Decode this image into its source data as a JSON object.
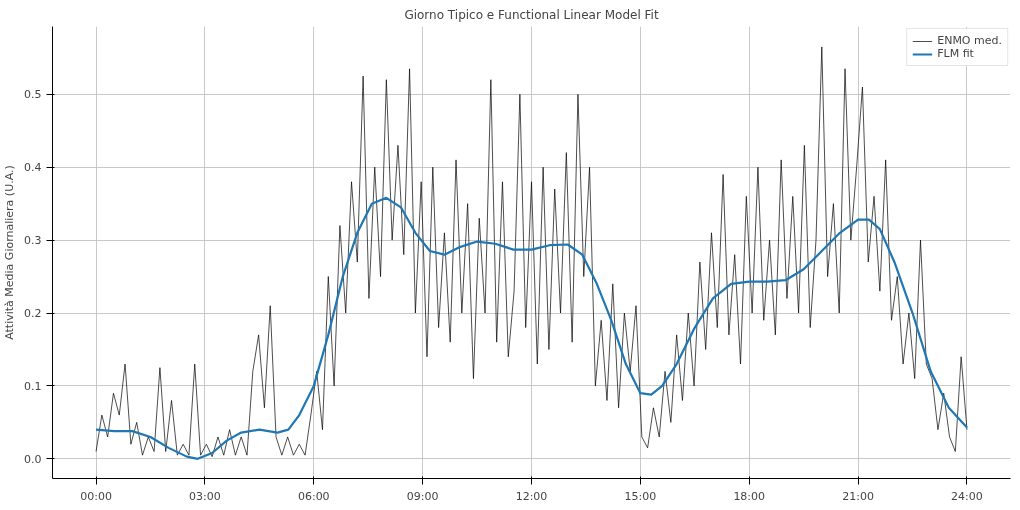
{
  "chart_data": {
    "type": "line",
    "title": "Giorno Tipico e Functional Linear Model Fit",
    "ylabel": "Attività Media Giornaliera (U.A.)",
    "xlim": [
      -1.2,
      25.2
    ],
    "ylim": [
      -0.027,
      0.593
    ],
    "xticks": [
      {
        "value": 0,
        "label": "00:00"
      },
      {
        "value": 3,
        "label": "03:00"
      },
      {
        "value": 6,
        "label": "06:00"
      },
      {
        "value": 9,
        "label": "09:00"
      },
      {
        "value": 12,
        "label": "12:00"
      },
      {
        "value": 15,
        "label": "15:00"
      },
      {
        "value": 18,
        "label": "18:00"
      },
      {
        "value": 21,
        "label": "21:00"
      },
      {
        "value": 24,
        "label": "24:00"
      }
    ],
    "yticks": [
      {
        "value": 0,
        "label": "0.0"
      },
      {
        "value": 0.1,
        "label": "0.1"
      },
      {
        "value": 0.2,
        "label": "0.2"
      },
      {
        "value": 0.3,
        "label": "0.3"
      },
      {
        "value": 0.4,
        "label": "0.4"
      },
      {
        "value": 0.5,
        "label": "0.5"
      }
    ],
    "grid": true,
    "legend": "top right",
    "marker": "none",
    "line_style": "solid",
    "series": [
      {
        "name": "ENMO med.",
        "color": "#000000",
        "x": [
          0,
          0.16,
          0.32,
          0.48,
          0.64,
          0.8,
          0.96,
          1.12,
          1.28,
          1.44,
          1.6,
          1.76,
          1.92,
          2.08,
          2.24,
          2.4,
          2.56,
          2.72,
          2.88,
          3.04,
          3.2,
          3.36,
          3.52,
          3.68,
          3.84,
          4.0,
          4.16,
          4.32,
          4.48,
          4.64,
          4.8,
          4.96,
          5.12,
          5.28,
          5.44,
          5.6,
          5.76,
          5.92,
          6.08,
          6.24,
          6.4,
          6.56,
          6.72,
          6.88,
          7.04,
          7.2,
          7.36,
          7.52,
          7.68,
          7.84,
          8.0,
          8.16,
          8.32,
          8.48,
          8.64,
          8.8,
          8.96,
          9.12,
          9.28,
          9.44,
          9.6,
          9.76,
          9.92,
          10.08,
          10.24,
          10.4,
          10.56,
          10.72,
          10.88,
          11.04,
          11.2,
          11.36,
          11.52,
          11.68,
          11.84,
          12.0,
          12.16,
          12.32,
          12.48,
          12.64,
          12.8,
          12.96,
          13.12,
          13.28,
          13.44,
          13.6,
          13.76,
          13.92,
          14.08,
          14.24,
          14.4,
          14.56,
          14.72,
          14.88,
          15.04,
          15.2,
          15.36,
          15.52,
          15.68,
          15.84,
          16.0,
          16.16,
          16.32,
          16.48,
          16.64,
          16.8,
          16.96,
          17.12,
          17.28,
          17.44,
          17.6,
          17.76,
          17.92,
          18.08,
          18.24,
          18.4,
          18.56,
          18.72,
          18.88,
          19.04,
          19.2,
          19.36,
          19.52,
          19.68,
          19.84,
          20.0,
          20.16,
          20.32,
          20.48,
          20.64,
          20.8,
          20.96,
          21.12,
          21.28,
          21.44,
          21.6,
          21.76,
          21.92,
          22.08,
          22.24,
          22.4,
          22.56,
          22.72,
          22.88,
          23.04,
          23.2,
          23.36,
          23.52,
          23.68,
          23.84,
          24.0
        ],
        "values": [
          0.01,
          0.06,
          0.03,
          0.09,
          0.06,
          0.13,
          0.02,
          0.05,
          0.005,
          0.03,
          0.01,
          0.125,
          0.01,
          0.08,
          0.005,
          0.02,
          0.005,
          0.13,
          0.005,
          0.02,
          0.003,
          0.03,
          0.005,
          0.04,
          0.005,
          0.03,
          0.005,
          0.12,
          0.17,
          0.07,
          0.21,
          0.03,
          0.005,
          0.03,
          0.005,
          0.02,
          0.005,
          0.06,
          0.12,
          0.04,
          0.25,
          0.1,
          0.32,
          0.2,
          0.38,
          0.27,
          0.525,
          0.22,
          0.4,
          0.25,
          0.52,
          0.3,
          0.43,
          0.28,
          0.535,
          0.2,
          0.38,
          0.14,
          0.4,
          0.18,
          0.31,
          0.16,
          0.41,
          0.2,
          0.35,
          0.11,
          0.33,
          0.2,
          0.52,
          0.16,
          0.38,
          0.14,
          0.23,
          0.5,
          0.18,
          0.38,
          0.13,
          0.4,
          0.15,
          0.37,
          0.2,
          0.42,
          0.16,
          0.5,
          0.25,
          0.4,
          0.1,
          0.19,
          0.08,
          0.24,
          0.07,
          0.2,
          0.12,
          0.21,
          0.03,
          0.015,
          0.07,
          0.03,
          0.12,
          0.05,
          0.17,
          0.08,
          0.2,
          0.1,
          0.27,
          0.15,
          0.31,
          0.18,
          0.39,
          0.17,
          0.28,
          0.13,
          0.36,
          0.2,
          0.4,
          0.19,
          0.3,
          0.17,
          0.41,
          0.22,
          0.36,
          0.2,
          0.43,
          0.18,
          0.3,
          0.565,
          0.25,
          0.35,
          0.2,
          0.535,
          0.3,
          0.4,
          0.51,
          0.27,
          0.36,
          0.23,
          0.41,
          0.19,
          0.25,
          0.13,
          0.2,
          0.11,
          0.3,
          0.13,
          0.11,
          0.04,
          0.09,
          0.03,
          0.01,
          0.14,
          0.04
        ]
      },
      {
        "name": "FLM fit",
        "color": "#1f77b4",
        "x": [
          0,
          0.5,
          1,
          1.5,
          2,
          2.5,
          2.8,
          3.2,
          3.6,
          4,
          4.5,
          5,
          5.3,
          5.6,
          6,
          6.4,
          6.8,
          7.2,
          7.6,
          8,
          8.4,
          8.8,
          9.2,
          9.6,
          10,
          10.5,
          11,
          11.5,
          12,
          12.5,
          13,
          13.4,
          13.8,
          14.2,
          14.6,
          15,
          15.3,
          15.6,
          16,
          16.5,
          17,
          17.5,
          18,
          18.5,
          19,
          19.5,
          20,
          20.5,
          21,
          21.3,
          21.6,
          22,
          22.5,
          23,
          23.5,
          24
        ],
        "values": [
          0.04,
          0.038,
          0.038,
          0.03,
          0.015,
          0.003,
          0.0,
          0.008,
          0.025,
          0.036,
          0.04,
          0.036,
          0.04,
          0.06,
          0.1,
          0.17,
          0.25,
          0.31,
          0.35,
          0.358,
          0.345,
          0.31,
          0.285,
          0.28,
          0.29,
          0.298,
          0.295,
          0.287,
          0.287,
          0.293,
          0.294,
          0.28,
          0.24,
          0.19,
          0.13,
          0.09,
          0.088,
          0.1,
          0.13,
          0.18,
          0.22,
          0.24,
          0.243,
          0.243,
          0.245,
          0.26,
          0.285,
          0.31,
          0.328,
          0.328,
          0.315,
          0.27,
          0.2,
          0.12,
          0.07,
          0.043
        ]
      }
    ]
  }
}
